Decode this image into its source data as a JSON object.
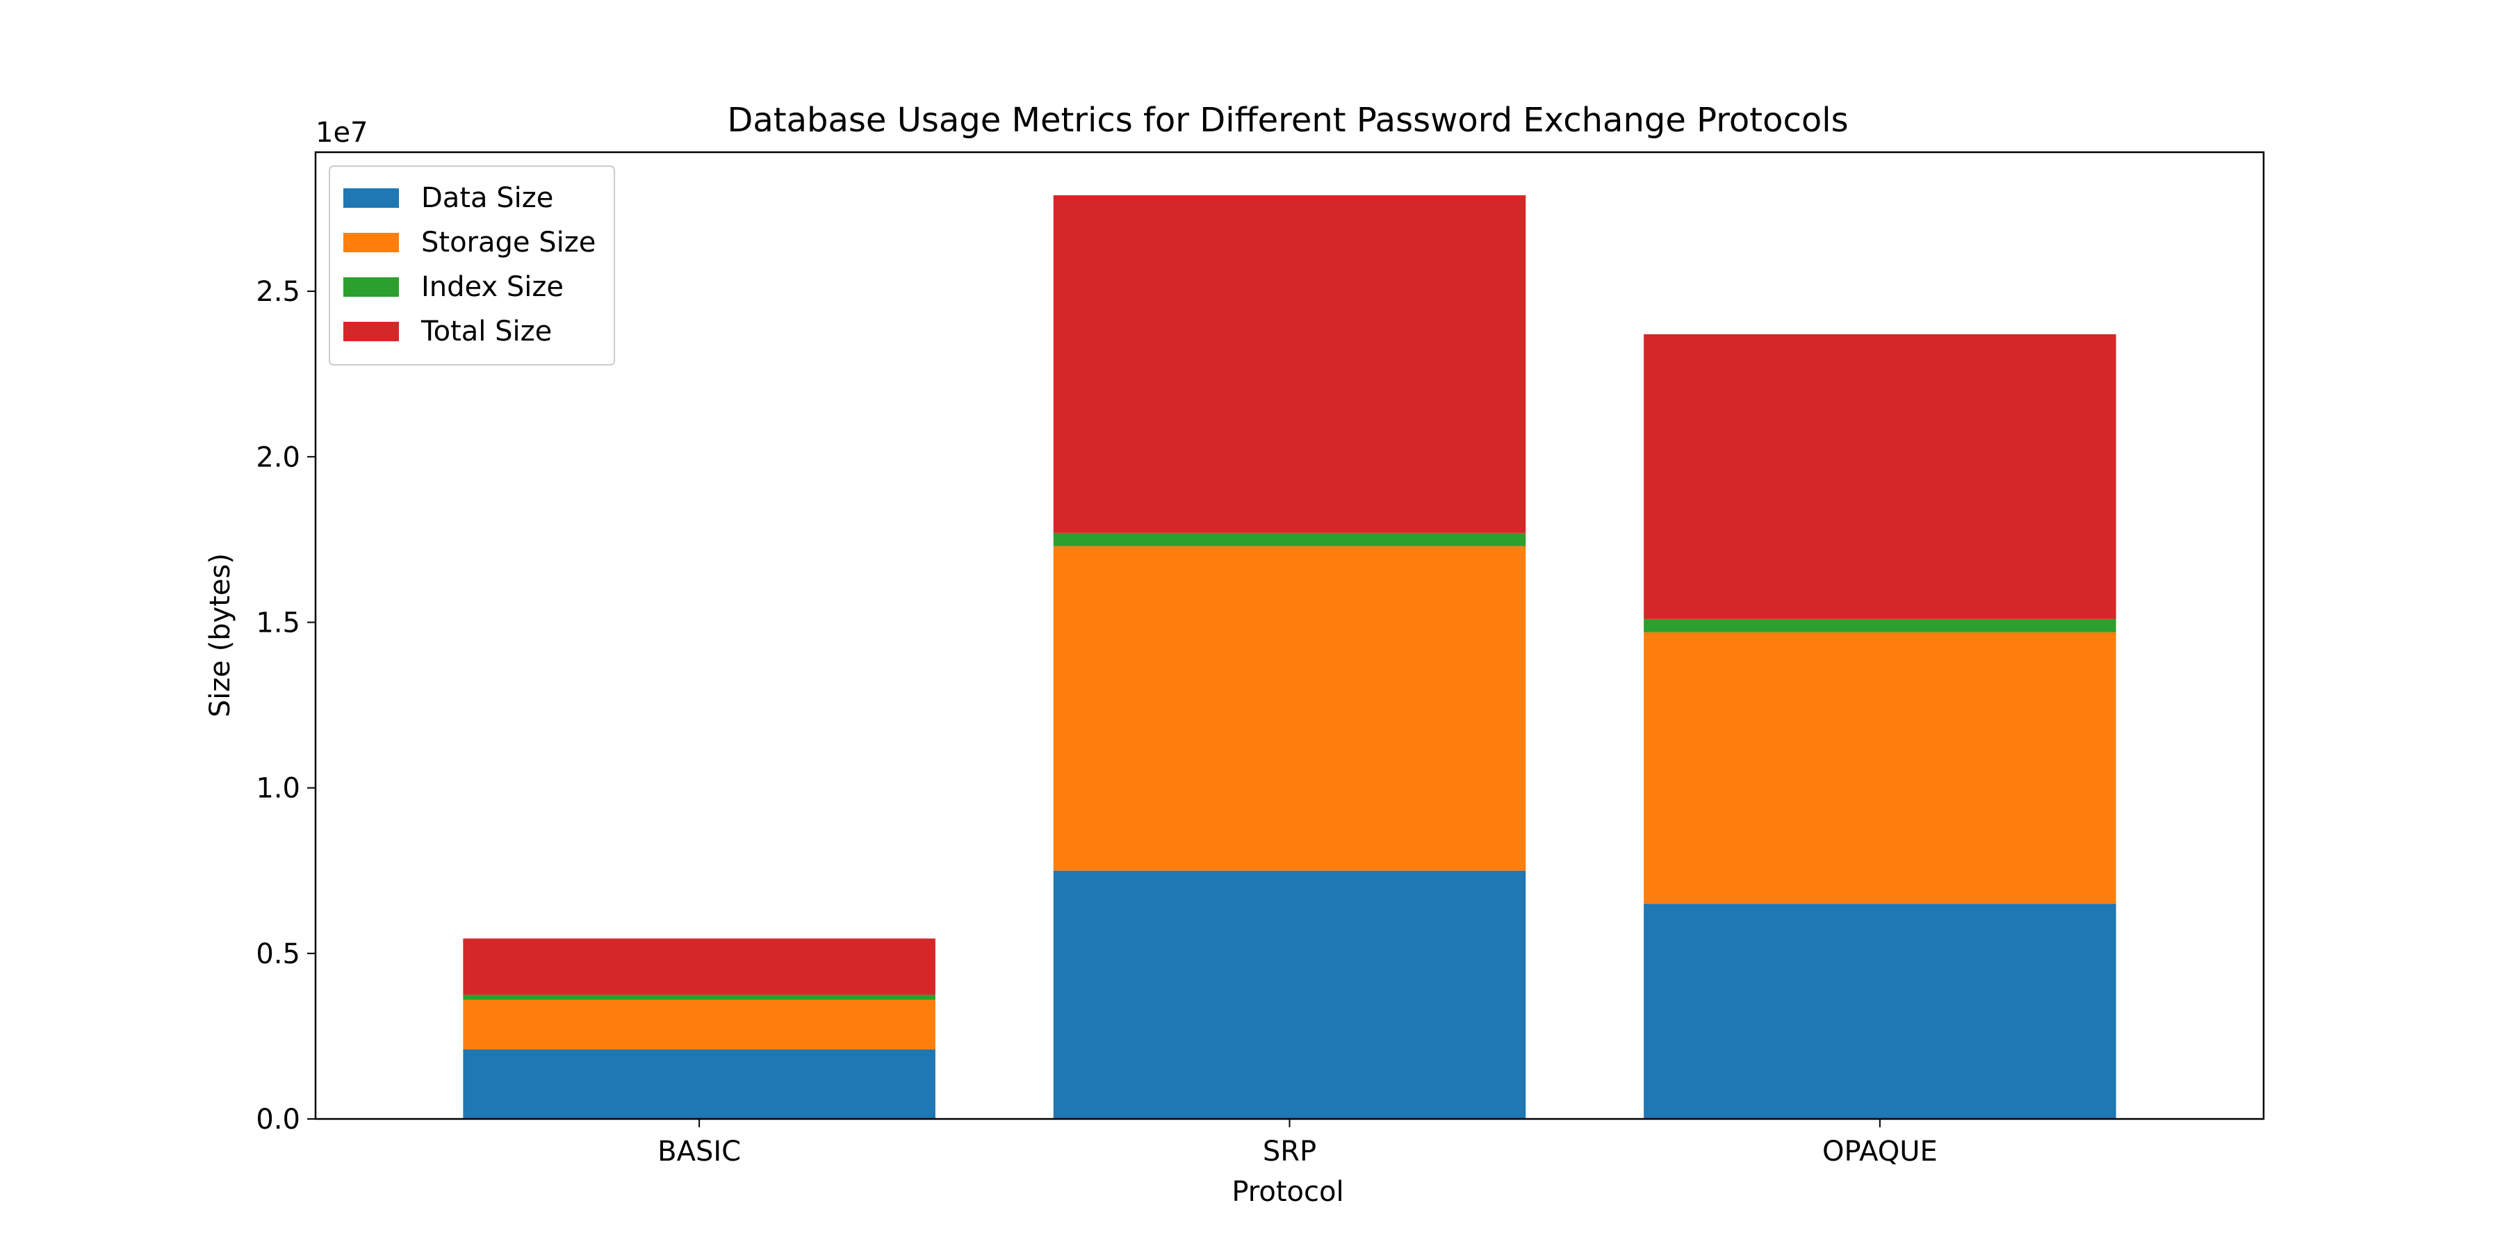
{
  "chart_data": {
    "type": "bar",
    "stacked": true,
    "title": "Database Usage Metrics for Different Password Exchange Protocols",
    "xlabel": "Protocol",
    "ylabel": "Size (bytes)",
    "y_offset_label": "1e7",
    "categories": [
      "BASIC",
      "SRP",
      "OPAQUE"
    ],
    "series": [
      {
        "name": "Data Size",
        "color": "#1f77b4",
        "values": [
          2100000,
          7500000,
          6500000
        ]
      },
      {
        "name": "Storage Size",
        "color": "#ff7f0e",
        "values": [
          1500000,
          9800000,
          8200000
        ]
      },
      {
        "name": "Index Size",
        "color": "#2ca02c",
        "values": [
          150000,
          400000,
          400000
        ]
      },
      {
        "name": "Total Size",
        "color": "#d62728",
        "values": [
          1700000,
          10200000,
          8600000
        ]
      }
    ],
    "ylim": [
      0,
      29200000
    ],
    "yticks": [
      0,
      5000000,
      10000000,
      15000000,
      20000000,
      25000000
    ],
    "ytick_labels": [
      "0.0",
      "0.5",
      "1.0",
      "1.5",
      "2.0",
      "2.5"
    ],
    "legend_position": "upper-left",
    "grid": false
  }
}
